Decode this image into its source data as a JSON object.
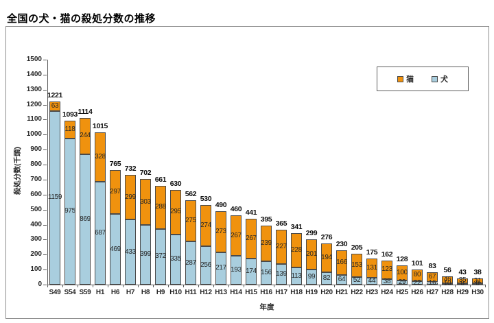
{
  "page": {
    "title": "全国の犬・猫の殺処分数の推移"
  },
  "chart_data": {
    "type": "bar",
    "stacked": true,
    "title": "全国の犬・猫の殺処分数の推移",
    "xlabel": "年度",
    "ylabel": "殺処分数(千頭)",
    "ylim": [
      0,
      1500
    ],
    "ytick_step": 100,
    "grid": false,
    "categories": [
      "S49",
      "S54",
      "S59",
      "H1",
      "H6",
      "H7",
      "H8",
      "H9",
      "H10",
      "H11",
      "H12",
      "H13",
      "H14",
      "H15",
      "H16",
      "H17",
      "H18",
      "H19",
      "H20",
      "H21",
      "H22",
      "H23",
      "H24",
      "H25",
      "H26",
      "H27",
      "H28",
      "H29",
      "H30"
    ],
    "series": [
      {
        "name": "犬",
        "color": "#A9CEDE",
        "values": [
          1159,
          975,
          869,
          687,
          469,
          433,
          399,
          372,
          335,
          287,
          256,
          217,
          193,
          174,
          156,
          139,
          113,
          99,
          82,
          64,
          52,
          44,
          38,
          29,
          22,
          16,
          10,
          8,
          8
        ]
      },
      {
        "name": "猫",
        "color": "#F0920E",
        "values": [
          63,
          118,
          244,
          328,
          297,
          299,
          303,
          288,
          295,
          275,
          274,
          273,
          267,
          267,
          239,
          227,
          228,
          201,
          194,
          166,
          153,
          131,
          123,
          100,
          80,
          67,
          46,
          35,
          31
        ]
      }
    ],
    "totals": [
      1221,
      1093,
      1114,
      1015,
      765,
      732,
      702,
      661,
      630,
      562,
      530,
      490,
      460,
      441,
      395,
      365,
      341,
      299,
      276,
      230,
      205,
      175,
      162,
      128,
      101,
      83,
      56,
      43,
      38
    ],
    "legend": {
      "position": "top-right",
      "items": [
        {
          "label": "猫",
          "color": "#F0920E"
        },
        {
          "label": "犬",
          "color": "#A9CEDE"
        }
      ]
    }
  }
}
